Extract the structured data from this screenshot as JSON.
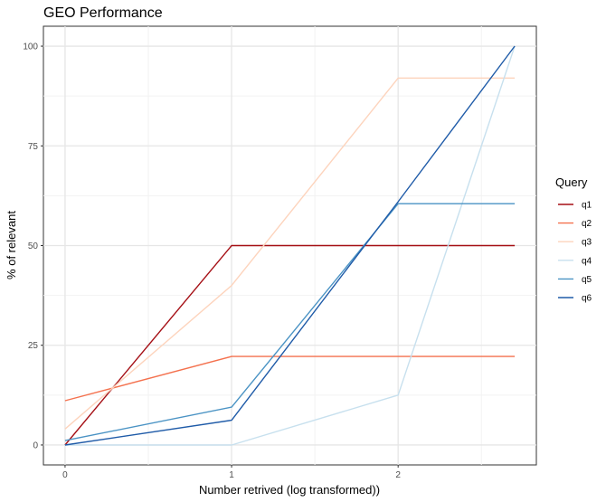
{
  "chart_data": {
    "type": "line",
    "title": "GEO Performance",
    "xlabel": "Number retrived (log transformed))",
    "ylabel": "% of relevant",
    "x_ticks": [
      0,
      1,
      2
    ],
    "y_ticks": [
      0,
      25,
      50,
      75,
      100
    ],
    "xlim": [
      -0.13,
      2.83
    ],
    "ylim": [
      -5,
      105
    ],
    "grid": true,
    "legend_position": "right",
    "legend_title": "Query",
    "series": [
      {
        "name": "q1",
        "color": "#a50f15",
        "x": [
          0,
          1,
          2,
          2.7
        ],
        "y": [
          0,
          50,
          50,
          50
        ]
      },
      {
        "name": "q2",
        "color": "#f4714e",
        "x": [
          0,
          1,
          2,
          2.7
        ],
        "y": [
          11.1,
          22.2,
          22.2,
          22.2
        ]
      },
      {
        "name": "q3",
        "color": "#fdd4bd",
        "x": [
          0,
          1,
          2,
          2.7
        ],
        "y": [
          4,
          40,
          92,
          92
        ]
      },
      {
        "name": "q4",
        "color": "#c7e0ee",
        "x": [
          0,
          1,
          2,
          2.7
        ],
        "y": [
          0,
          0,
          12.5,
          100
        ]
      },
      {
        "name": "q5",
        "color": "#4a93c4",
        "x": [
          0,
          1,
          2,
          2.7
        ],
        "y": [
          1.1,
          9.5,
          60.5,
          60.5
        ]
      },
      {
        "name": "q6",
        "color": "#1f5ba8",
        "x": [
          0,
          1,
          2,
          2.7
        ],
        "y": [
          0,
          6.2,
          61,
          100
        ]
      }
    ]
  }
}
